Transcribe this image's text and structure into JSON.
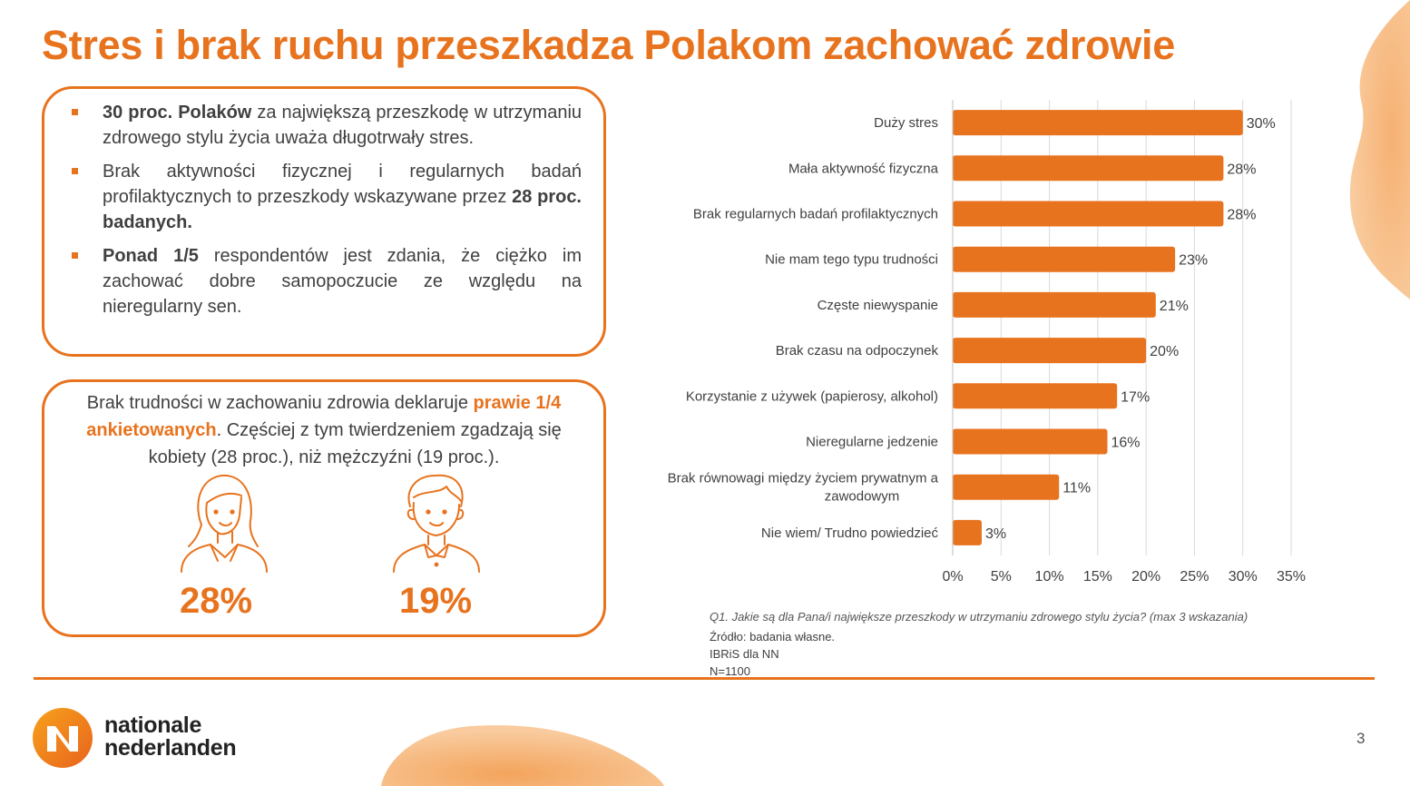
{
  "title": "Stres i brak ruchu przeszkadza Polakom zachować zdrowie",
  "box1": {
    "bullets": [
      {
        "bold": "30 proc. Polaków",
        "text": " za największą przeszkodę w utrzymaniu zdrowego stylu życia uważa długotrwały stres."
      },
      {
        "text": "Brak aktywności fizycznej i regularnych badań profilaktycznych to przeszkody wskazywane przez ",
        "bold": "28 proc. badanych."
      },
      {
        "bold": "Ponad 1/5",
        "text": " respondentów jest zdania, że ciężko im zachować dobre samopoczucie ze względu na nieregularny sen."
      }
    ]
  },
  "box2": {
    "text_before": "Brak trudności w zachowaniu zdrowia deklaruje ",
    "highlight": "prawie 1/4 ankietowanych",
    "text_after": ". Częściej z tym twierdzeniem zgadzają się kobiety (28 proc.), niż mężczyźni (19 proc.).",
    "women_pct": "28%",
    "men_pct": "19%"
  },
  "chart_data": {
    "type": "bar",
    "orientation": "horizontal",
    "categories": [
      "Duży stres",
      "Mała aktywność fizyczna",
      "Brak regularnych badań profilaktycznych",
      "Nie mam tego typu trudności",
      "Częste niewyspanie",
      "Brak czasu na odpoczynek",
      "Korzystanie z używek (papierosy, alkohol)",
      "Nieregularne jedzenie",
      "Brak równowagi między życiem prywatnym a zawodowym",
      "Nie wiem/ Trudno powiedzieć"
    ],
    "values": [
      30,
      28,
      28,
      23,
      21,
      20,
      17,
      16,
      11,
      3
    ],
    "value_labels": [
      "30%",
      "28%",
      "28%",
      "23%",
      "21%",
      "20%",
      "17%",
      "16%",
      "11%",
      "3%"
    ],
    "x_ticks": [
      "0%",
      "5%",
      "10%",
      "15%",
      "20%",
      "25%",
      "30%",
      "35%"
    ],
    "xlim": [
      0,
      35
    ],
    "unit": "%",
    "grid": true,
    "color": "#E8731E"
  },
  "footnotes": {
    "question": "Q1. Jakie są dla Pana/i  największe przeszkody w utrzymaniu zdrowego stylu życia? (max 3 wskazania)",
    "source": "Źródło: badania własne.",
    "institute": "IBRiS dla NN",
    "sample": "N=1100"
  },
  "brand": {
    "line1": "nationale",
    "line2": "nederlanden"
  },
  "page_number": "3",
  "colors": {
    "accent": "#E8731E",
    "text": "#404040"
  }
}
